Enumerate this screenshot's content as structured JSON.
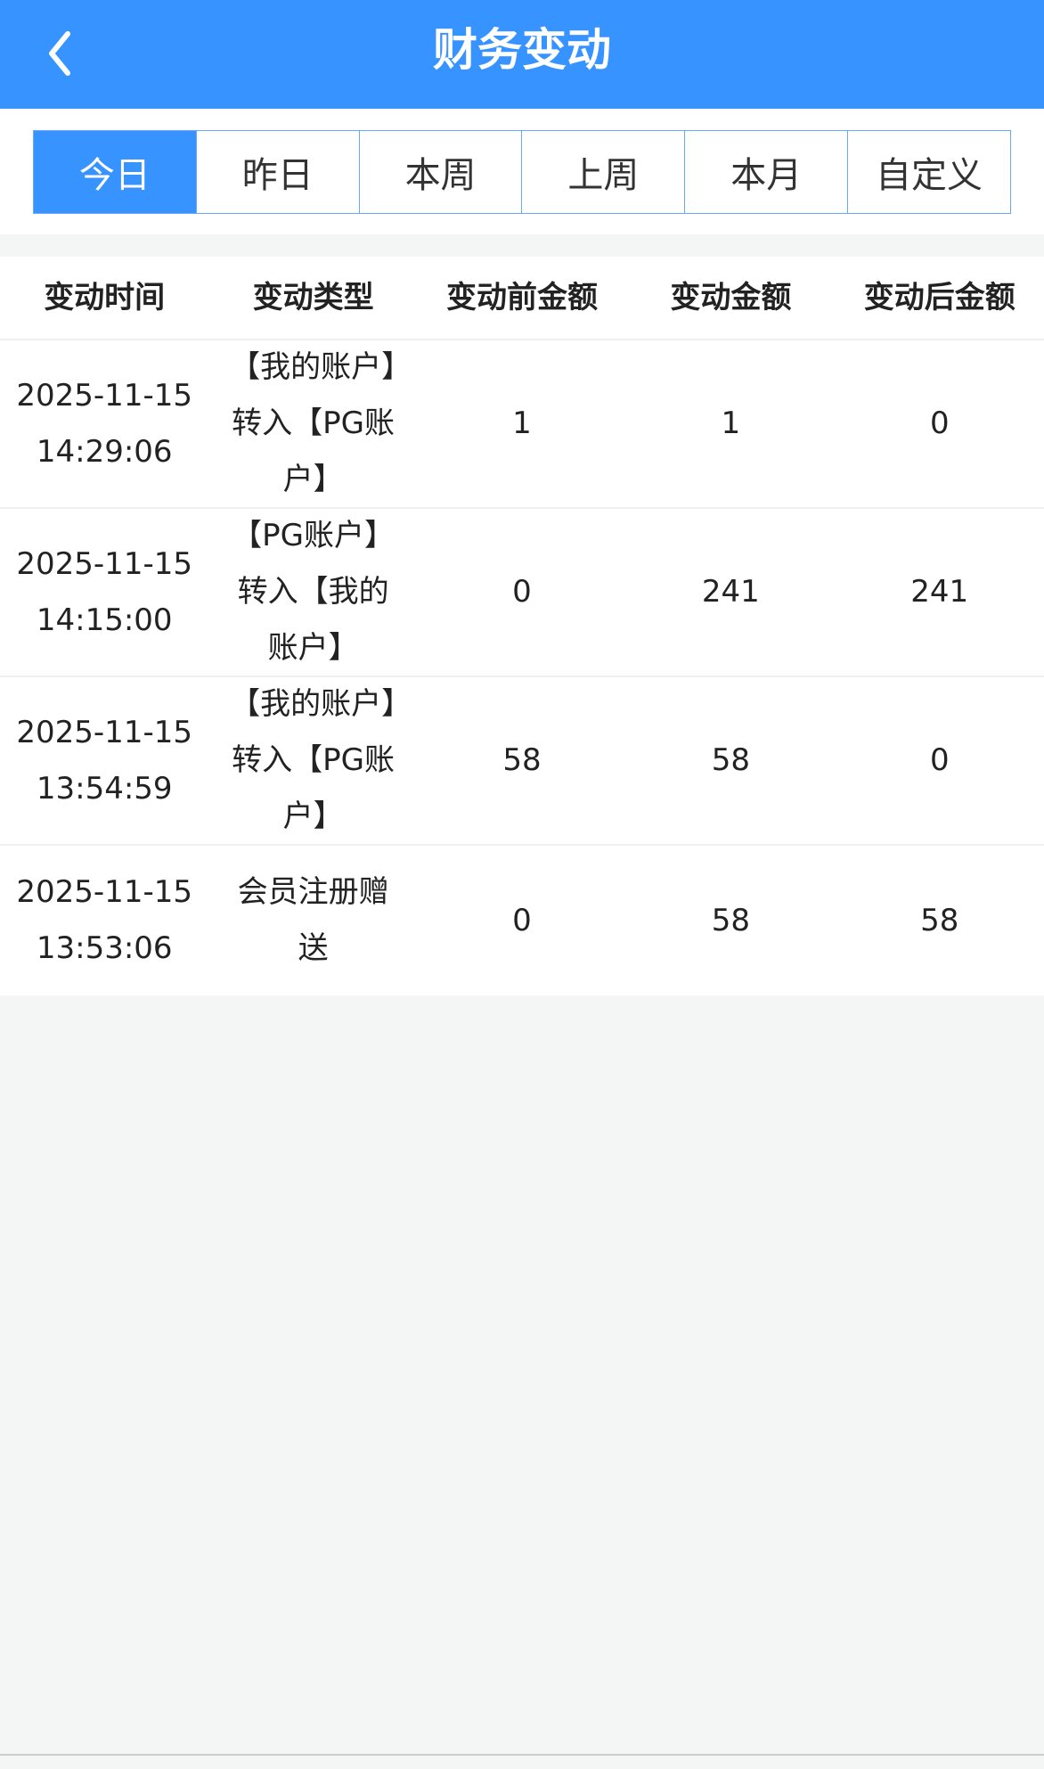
{
  "header": {
    "title": "财务变动",
    "back_icon": "chevron-left-icon"
  },
  "tabs": [
    {
      "label": "今日",
      "active": true
    },
    {
      "label": "昨日"
    },
    {
      "label": "本周"
    },
    {
      "label": "上周"
    },
    {
      "label": "本月"
    },
    {
      "label": "自定义"
    }
  ],
  "colors": {
    "accent": "#3793ff",
    "background": "#f4f5f5"
  },
  "table": {
    "columns": [
      "变动时间",
      "变动类型",
      "变动前金额",
      "变动金额",
      "变动后金额"
    ],
    "rows": [
      {
        "date": "2025-11-15",
        "time": "14:29:06",
        "type": "【我的账户】转入【PG账户】",
        "before": "1",
        "amount": "1",
        "after": "0"
      },
      {
        "date": "2025-11-15",
        "time": "14:15:00",
        "type": "【PG账户】转入【我的账户】",
        "before": "0",
        "amount": "241",
        "after": "241"
      },
      {
        "date": "2025-11-15",
        "time": "13:54:59",
        "type": "【我的账户】转入【PG账户】",
        "before": "58",
        "amount": "58",
        "after": "0"
      },
      {
        "date": "2025-11-15",
        "time": "13:53:06",
        "type": "会员注册赠送",
        "before": "0",
        "amount": "58",
        "after": "58"
      }
    ]
  }
}
